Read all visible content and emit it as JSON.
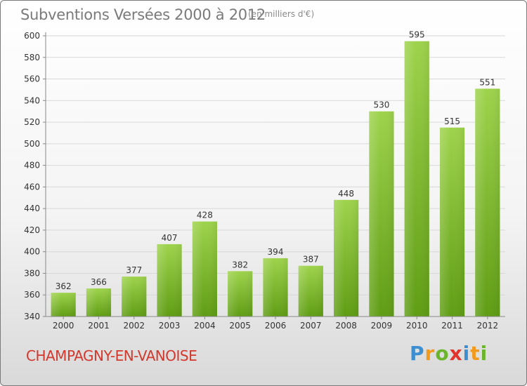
{
  "header": {
    "title": "Subventions Versées 2000 à 2012",
    "unit": "(en milliers d'€)"
  },
  "footer": {
    "commune": "CHAMPAGNY-EN-VANOISE",
    "brand": "Proxiti"
  },
  "colors": {
    "bar_top": "#9ed34c",
    "bar_bottom": "#5f9d14",
    "grid": "#d8d8d8",
    "axis_text": "#333333",
    "commune": "#d4372b"
  },
  "chart_data": {
    "type": "bar",
    "categories": [
      "2000",
      "2001",
      "2002",
      "2003",
      "2004",
      "2005",
      "2006",
      "2007",
      "2008",
      "2009",
      "2010",
      "2011",
      "2012"
    ],
    "values": [
      362,
      366,
      377,
      407,
      428,
      382,
      394,
      387,
      448,
      530,
      595,
      515,
      551
    ],
    "title": "Subventions Versées 2000 à 2012",
    "ylim": [
      340,
      600
    ],
    "yticks": [
      340,
      360,
      380,
      400,
      420,
      440,
      460,
      480,
      500,
      520,
      540,
      560,
      580,
      600
    ],
    "grid": true,
    "data_labels": true
  }
}
